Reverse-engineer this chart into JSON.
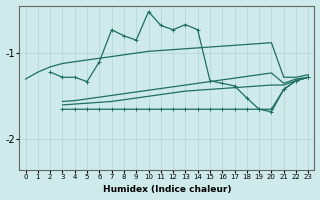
{
  "xlabel": "Humidex (Indice chaleur)",
  "bg_color": "#ceeaea",
  "grid_color": "#b8d8d8",
  "line_color": "#1e6e64",
  "xlim": [
    -0.5,
    23.5
  ],
  "ylim": [
    -2.35,
    -0.45
  ],
  "yticks": [
    -2,
    -1
  ],
  "xticks": [
    0,
    1,
    2,
    3,
    4,
    5,
    6,
    7,
    8,
    9,
    10,
    11,
    12,
    13,
    14,
    15,
    16,
    17,
    18,
    19,
    20,
    21,
    22,
    23
  ],
  "line_smooth": {
    "x": [
      0,
      1,
      2,
      3,
      4,
      5,
      6,
      7,
      8,
      9,
      10,
      11,
      12,
      13,
      14,
      15,
      16,
      17,
      18,
      19,
      20,
      21,
      22,
      23
    ],
    "y": [
      -1.3,
      -1.22,
      -1.16,
      -1.12,
      -1.1,
      -1.08,
      -1.06,
      -1.04,
      -1.02,
      -1.0,
      -0.98,
      -0.97,
      -0.96,
      -0.95,
      -0.94,
      -0.93,
      -0.92,
      -0.91,
      -0.9,
      -0.89,
      -0.88,
      -1.28,
      -1.28,
      -1.25
    ]
  },
  "line_peaked": {
    "x": [
      2,
      3,
      4,
      5,
      6,
      7,
      8,
      9,
      10,
      11,
      12,
      13,
      14,
      15,
      16,
      17,
      18,
      19,
      20,
      21,
      22,
      23
    ],
    "y": [
      -1.22,
      -1.28,
      -1.28,
      -1.33,
      -1.1,
      -0.73,
      -0.8,
      -0.85,
      -0.52,
      -0.68,
      -0.73,
      -0.67,
      -0.73,
      -1.32,
      -1.35,
      -1.38,
      -1.52,
      -1.65,
      -1.68,
      -1.42,
      -1.32,
      -1.28
    ]
  },
  "line_flat1": {
    "x": [
      3,
      4,
      5,
      6,
      7,
      8,
      9,
      10,
      11,
      12,
      13,
      14,
      15,
      16,
      17,
      18,
      19,
      20,
      21,
      22,
      23
    ],
    "y": [
      -1.65,
      -1.65,
      -1.65,
      -1.65,
      -1.65,
      -1.65,
      -1.65,
      -1.65,
      -1.65,
      -1.65,
      -1.65,
      -1.65,
      -1.65,
      -1.65,
      -1.65,
      -1.65,
      -1.65,
      -1.65,
      -1.42,
      -1.32,
      -1.28
    ]
  },
  "line_flat2": {
    "x": [
      3,
      4,
      5,
      6,
      7,
      8,
      9,
      10,
      11,
      12,
      13,
      14,
      15,
      16,
      17,
      18,
      19,
      20,
      21,
      22,
      23
    ],
    "y": [
      -1.6,
      -1.59,
      -1.58,
      -1.57,
      -1.56,
      -1.54,
      -1.52,
      -1.5,
      -1.48,
      -1.46,
      -1.44,
      -1.43,
      -1.42,
      -1.41,
      -1.4,
      -1.39,
      -1.38,
      -1.37,
      -1.37,
      -1.32,
      -1.28
    ]
  },
  "line_flat3": {
    "x": [
      3,
      4,
      5,
      6,
      7,
      8,
      9,
      10,
      11,
      12,
      13,
      14,
      15,
      16,
      17,
      18,
      19,
      20,
      21,
      22,
      23
    ],
    "y": [
      -1.56,
      -1.55,
      -1.53,
      -1.51,
      -1.49,
      -1.47,
      -1.45,
      -1.43,
      -1.41,
      -1.39,
      -1.37,
      -1.35,
      -1.33,
      -1.31,
      -1.29,
      -1.27,
      -1.25,
      -1.23,
      -1.35,
      -1.3,
      -1.28
    ]
  }
}
